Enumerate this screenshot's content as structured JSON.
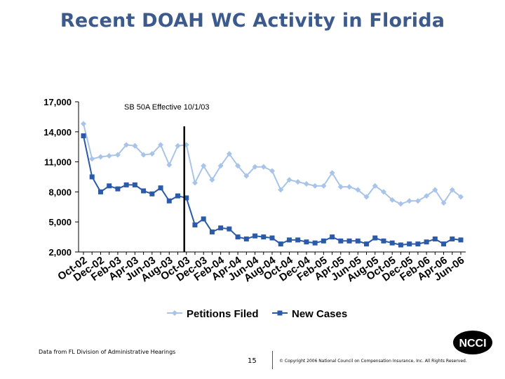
{
  "slide": {
    "title": "Recent DOAH WC Activity in Florida",
    "source_note": "Data from FL Division of Administrative Hearings",
    "page_number": "15",
    "copyright": "© Copyright 2006 National Council on Compensation Insurance, Inc.  All Rights Reserved.",
    "logo_text": "NCCI"
  },
  "chart_data": {
    "type": "line",
    "title": "",
    "xlabel": "",
    "ylabel": "",
    "ylim": [
      2000,
      17000
    ],
    "yticks": [
      17000,
      14000,
      11000,
      8000,
      5000,
      2000
    ],
    "ytick_labels": [
      "17,000",
      "14,000",
      "11,000",
      "8,000",
      "5,000",
      "2,000"
    ],
    "grid": false,
    "legend_position": "bottom",
    "categories": [
      "Oct-02",
      "Nov-02",
      "Dec-02",
      "Jan-03",
      "Feb-03",
      "Mar-03",
      "Apr-03",
      "May-03",
      "Jun-03",
      "Jul-03",
      "Aug-03",
      "Sep-03",
      "Oct-03",
      "Nov-03",
      "Dec-03",
      "Jan-04",
      "Feb-04",
      "Mar-04",
      "Apr-04",
      "May-04",
      "Jun-04",
      "Jul-04",
      "Aug-04",
      "Sep-04",
      "Oct-04",
      "Nov-04",
      "Dec-04",
      "Jan-05",
      "Feb-05",
      "Mar-05",
      "Apr-05",
      "May-05",
      "Jun-05",
      "Jul-05",
      "Aug-05",
      "Sep-05",
      "Oct-05",
      "Nov-05",
      "Dec-05",
      "Jan-06",
      "Feb-06",
      "Mar-06",
      "Apr-06",
      "May-06",
      "Jun-06"
    ],
    "xtick_labels": [
      "Oct-02",
      "Dec-02",
      "Feb-03",
      "Apr-03",
      "Jun-03",
      "Aug-03",
      "Oct-03",
      "Dec-03",
      "Feb-04",
      "Apr-04",
      "Jun-04",
      "Aug-04",
      "Oct-04",
      "Dec-04",
      "Feb-05",
      "Apr-05",
      "Jun-05",
      "Aug-05",
      "Oct-05",
      "Dec-05",
      "Feb-06",
      "Apr-06",
      "Jun-06"
    ],
    "series": [
      {
        "name": "Petitions Filed",
        "color": "#a8c4e8",
        "marker": "diamond",
        "values": [
          14800,
          11300,
          11500,
          11600,
          11700,
          12700,
          12600,
          11700,
          11800,
          12700,
          10700,
          12600,
          12700,
          8900,
          10600,
          9200,
          10600,
          11800,
          10600,
          9600,
          10500,
          10500,
          10100,
          8200,
          9200,
          9000,
          8800,
          8600,
          8600,
          9900,
          8500,
          8500,
          8200,
          7500,
          8600,
          8000,
          7200,
          6800,
          7100,
          7100,
          7600,
          8200,
          6900,
          8200,
          7500
        ]
      },
      {
        "name": "New Cases",
        "color": "#2b5aa8",
        "marker": "square",
        "values": [
          13600,
          9500,
          8000,
          8600,
          8300,
          8700,
          8700,
          8100,
          7800,
          8400,
          7100,
          7600,
          7400,
          4700,
          5300,
          4000,
          4400,
          4300,
          3500,
          3300,
          3600,
          3500,
          3400,
          2800,
          3200,
          3200,
          3000,
          2900,
          3100,
          3500,
          3100,
          3100,
          3100,
          2800,
          3400,
          3100,
          2900,
          2700,
          2800,
          2800,
          3000,
          3300,
          2800,
          3300,
          3200
        ]
      }
    ],
    "annotations": [
      {
        "text": "SB 50A Effective 10/1/03",
        "x": "Oct-03"
      }
    ]
  }
}
